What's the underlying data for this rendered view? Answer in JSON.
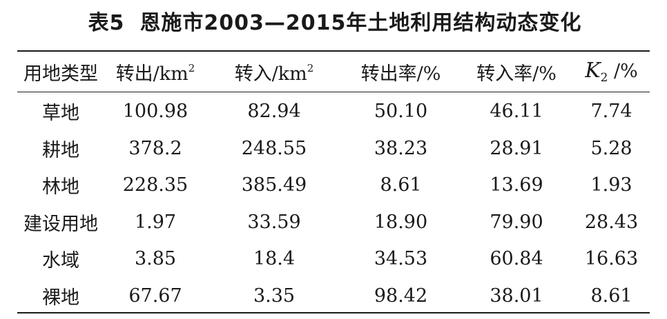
{
  "title": {
    "label": "表5",
    "text": "恩施市2003—2015年土地利用结构动态变化"
  },
  "table": {
    "headers": [
      {
        "text": "用地类型"
      },
      {
        "text": "转出/km",
        "sup": "2"
      },
      {
        "text": "转入/km",
        "sup": "2"
      },
      {
        "text": "转出率/%"
      },
      {
        "text": "转入率/%"
      },
      {
        "symbol": "K",
        "sub": "2",
        "unit": " /%"
      }
    ],
    "rows": [
      [
        "草地",
        "100.98",
        "82.94",
        "50.10",
        "46.11",
        "7.74"
      ],
      [
        "耕地",
        "378.2",
        "248.55",
        "38.23",
        "28.91",
        "5.28"
      ],
      [
        "林地",
        "228.35",
        "385.49",
        "8.61",
        "13.69",
        "1.93"
      ],
      [
        "建设用地",
        "1.97",
        "33.59",
        "18.90",
        "79.90",
        "28.43"
      ],
      [
        "水域",
        "3.85",
        "18.4",
        "34.53",
        "60.84",
        "16.63"
      ],
      [
        "裸地",
        "67.67",
        "3.35",
        "98.42",
        "38.01",
        "8.61"
      ]
    ]
  }
}
